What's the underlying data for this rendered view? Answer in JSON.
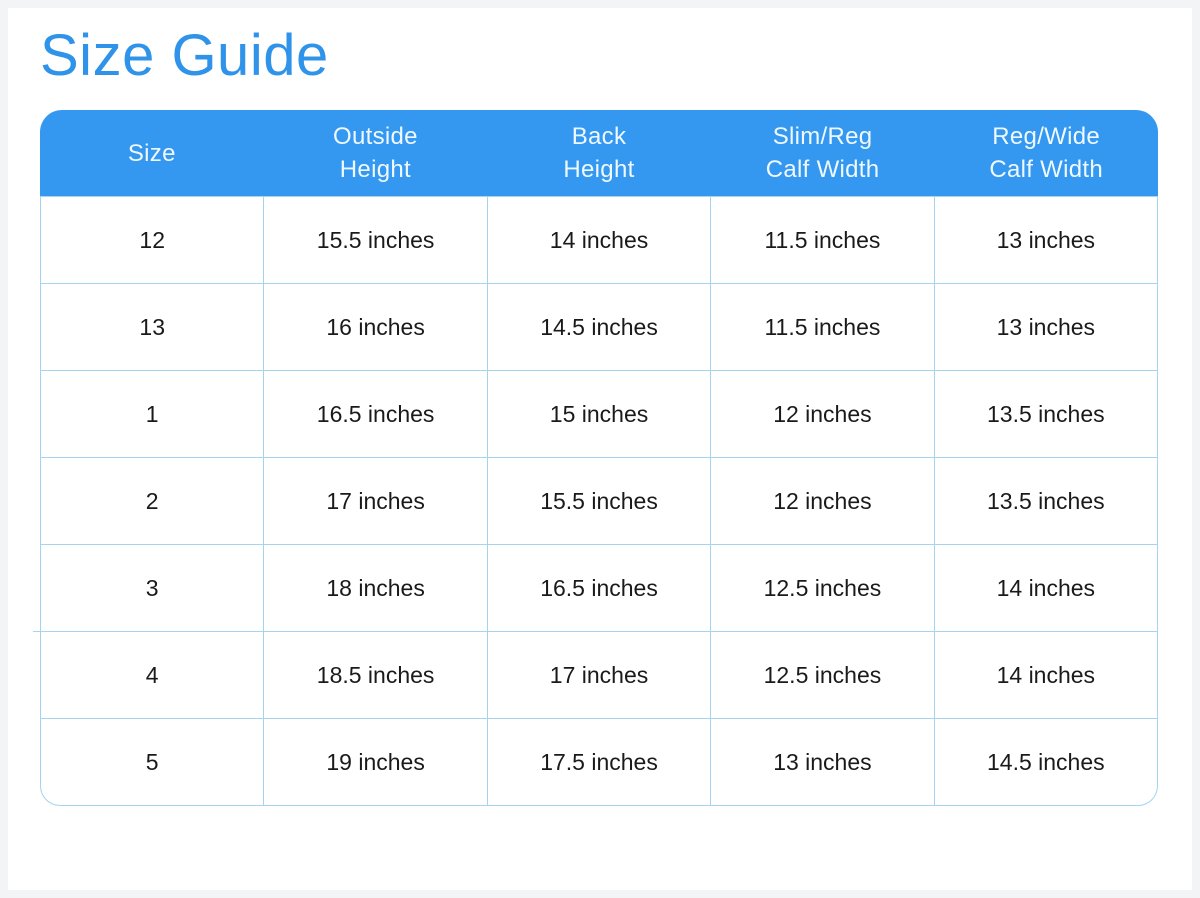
{
  "page": {
    "title": "Size Guide"
  },
  "table": {
    "headers": [
      "Size",
      "Outside\nHeight",
      "Back\nHeight",
      "Slim/Reg\nCalf Width",
      "Reg/Wide\nCalf Width"
    ],
    "rows": [
      [
        "12",
        "15.5 inches",
        "14 inches",
        "11.5 inches",
        "13 inches"
      ],
      [
        "13",
        "16 inches",
        "14.5 inches",
        "11.5 inches",
        "13 inches"
      ],
      [
        "1",
        "16.5 inches",
        "15 inches",
        "12 inches",
        "13.5 inches"
      ],
      [
        "2",
        "17 inches",
        "15.5 inches",
        "12 inches",
        "13.5 inches"
      ],
      [
        "3",
        "18 inches",
        "16.5 inches",
        "12.5 inches",
        "14 inches"
      ],
      [
        "4",
        "18.5 inches",
        "17 inches",
        "12.5 inches",
        "14 inches"
      ],
      [
        "5",
        "19 inches",
        "17.5 inches",
        "13 inches",
        "14.5 inches"
      ]
    ]
  },
  "colors": {
    "title_text": "#2e93e9",
    "header_bg": "#3498f0",
    "header_text": "#eff8fe",
    "table_border": "#a5d3f0",
    "cell_text": "#1a1a1a"
  }
}
